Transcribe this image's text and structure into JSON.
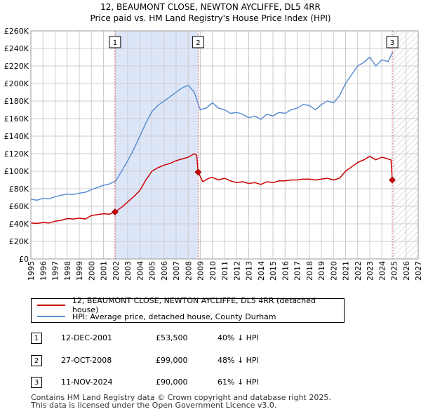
{
  "title_line1": "12, BEAUMONT CLOSE, NEWTON AYCLIFFE, DL5 4RR",
  "title_line2": "Price paid vs. HM Land Registry's House Price Index (HPI)",
  "chart_data": {
    "type": "line",
    "title": "12, BEAUMONT CLOSE, NEWTON AYCLIFFE, DL5 4RR — Price paid vs. HM Land Registry's House Price Index (HPI)",
    "xlim": [
      1995,
      2027
    ],
    "ylim": [
      0,
      260000
    ],
    "x_ticks": [
      1995,
      1996,
      1997,
      1998,
      1999,
      2000,
      2001,
      2002,
      2003,
      2004,
      2005,
      2006,
      2007,
      2008,
      2009,
      2010,
      2011,
      2012,
      2013,
      2014,
      2015,
      2016,
      2017,
      2018,
      2019,
      2020,
      2021,
      2022,
      2023,
      2024,
      2025,
      2026,
      2027
    ],
    "y_ticks": [
      0,
      20000,
      40000,
      60000,
      80000,
      100000,
      120000,
      140000,
      160000,
      180000,
      200000,
      220000,
      240000,
      260000
    ],
    "y_tick_labels": [
      "£0",
      "£20K",
      "£40K",
      "£60K",
      "£80K",
      "£100K",
      "£120K",
      "£140K",
      "£160K",
      "£180K",
      "£200K",
      "£220K",
      "£240K",
      "£260K"
    ],
    "colors": {
      "property": "#cc0000",
      "hpi": "#5b8fd0",
      "shade": "#dde6f8",
      "marker_line": "#e06070",
      "grid": "#cccccc"
    },
    "shaded_region": [
      2001.95,
      2008.82
    ],
    "future_hatch_from": 2024.9,
    "series": [
      {
        "name": "12, BEAUMONT CLOSE, NEWTON AYCLIFFE, DL5 4RR (detached house)",
        "color": "#cc0000",
        "x": [
          1995.0,
          1995.5,
          1996.0,
          1996.5,
          1997.0,
          1997.5,
          1998.0,
          1998.5,
          1999.0,
          1999.5,
          2000.0,
          2000.5,
          2001.0,
          2001.5,
          2001.95,
          2002.5,
          2003.0,
          2003.5,
          2004.0,
          2004.5,
          2005.0,
          2005.5,
          2006.0,
          2006.5,
          2007.0,
          2007.5,
          2008.0,
          2008.5,
          2008.7,
          2008.82,
          2009.2,
          2009.7,
          2010.0,
          2010.5,
          2011.0,
          2011.5,
          2012.0,
          2012.5,
          2013.0,
          2013.5,
          2014.0,
          2014.5,
          2015.0,
          2015.5,
          2016.0,
          2016.5,
          2017.0,
          2017.5,
          2018.0,
          2018.5,
          2019.0,
          2019.5,
          2020.0,
          2020.5,
          2021.0,
          2021.5,
          2022.0,
          2022.5,
          2023.0,
          2023.5,
          2024.0,
          2024.5,
          2024.75,
          2024.86
        ],
        "values": [
          41000,
          40500,
          41500,
          41000,
          43000,
          44000,
          46000,
          45500,
          46500,
          45500,
          49500,
          50500,
          51500,
          51000,
          53500,
          59000,
          65000,
          71000,
          78000,
          90000,
          100000,
          104000,
          107000,
          109000,
          112000,
          114000,
          116000,
          120000,
          118000,
          99000,
          88000,
          92000,
          93000,
          90000,
          92000,
          89000,
          87000,
          88000,
          86000,
          87000,
          85000,
          88000,
          87000,
          89000,
          89000,
          90000,
          90000,
          91000,
          91000,
          90000,
          91000,
          92000,
          90000,
          92000,
          100000,
          105000,
          110000,
          113000,
          117000,
          113000,
          116000,
          114000,
          113000,
          90000
        ]
      },
      {
        "name": "HPI: Average price, detached house, County Durham",
        "color": "#5b8fd0",
        "x": [
          1995.0,
          1995.5,
          1996.0,
          1996.5,
          1997.0,
          1997.5,
          1998.0,
          1998.5,
          1999.0,
          1999.5,
          2000.0,
          2000.5,
          2001.0,
          2001.5,
          2002.0,
          2002.5,
          2003.0,
          2003.5,
          2004.0,
          2004.5,
          2005.0,
          2005.5,
          2006.0,
          2006.5,
          2007.0,
          2007.5,
          2008.0,
          2008.5,
          2009.0,
          2009.5,
          2010.0,
          2010.5,
          2011.0,
          2011.5,
          2012.0,
          2012.5,
          2013.0,
          2013.5,
          2014.0,
          2014.5,
          2015.0,
          2015.5,
          2016.0,
          2016.5,
          2017.0,
          2017.5,
          2018.0,
          2018.5,
          2019.0,
          2019.5,
          2020.0,
          2020.5,
          2021.0,
          2021.5,
          2022.0,
          2022.5,
          2023.0,
          2023.5,
          2024.0,
          2024.5,
          2024.9
        ],
        "values": [
          68000,
          67000,
          69000,
          68500,
          71000,
          72500,
          74000,
          73500,
          75000,
          76000,
          79000,
          81500,
          84000,
          85500,
          89000,
          100000,
          112000,
          125000,
          140000,
          155000,
          168000,
          175000,
          180000,
          185000,
          190000,
          195000,
          198000,
          190000,
          170000,
          172000,
          178000,
          172000,
          170000,
          166000,
          167000,
          165000,
          161000,
          163000,
          159000,
          165000,
          163000,
          167000,
          166000,
          170000,
          172000,
          176000,
          175000,
          170000,
          176000,
          180000,
          178000,
          186000,
          200000,
          210000,
          220000,
          224000,
          230000,
          220000,
          227000,
          225000,
          236000
        ]
      }
    ],
    "sales": [
      {
        "id": "1",
        "x": 2001.95,
        "value": 53500
      },
      {
        "id": "2",
        "x": 2008.82,
        "value": 99000
      },
      {
        "id": "3",
        "x": 2024.86,
        "value": 90000
      }
    ]
  },
  "legend": {
    "property_label": "12, BEAUMONT CLOSE, NEWTON AYCLIFFE, DL5 4RR (detached house)",
    "hpi_label": "HPI: Average price, detached house, County Durham"
  },
  "sales_table": [
    {
      "id": "1",
      "date": "12-DEC-2001",
      "price": "£53,500",
      "hpi": "40% ↓ HPI"
    },
    {
      "id": "2",
      "date": "27-OCT-2008",
      "price": "£99,000",
      "hpi": "48% ↓ HPI"
    },
    {
      "id": "3",
      "date": "11-NOV-2024",
      "price": "£90,000",
      "hpi": "61% ↓ HPI"
    }
  ],
  "footer": {
    "line1": "Contains HM Land Registry data © Crown copyright and database right 2025.",
    "line2": "This data is licensed under the Open Government Licence v3.0."
  }
}
